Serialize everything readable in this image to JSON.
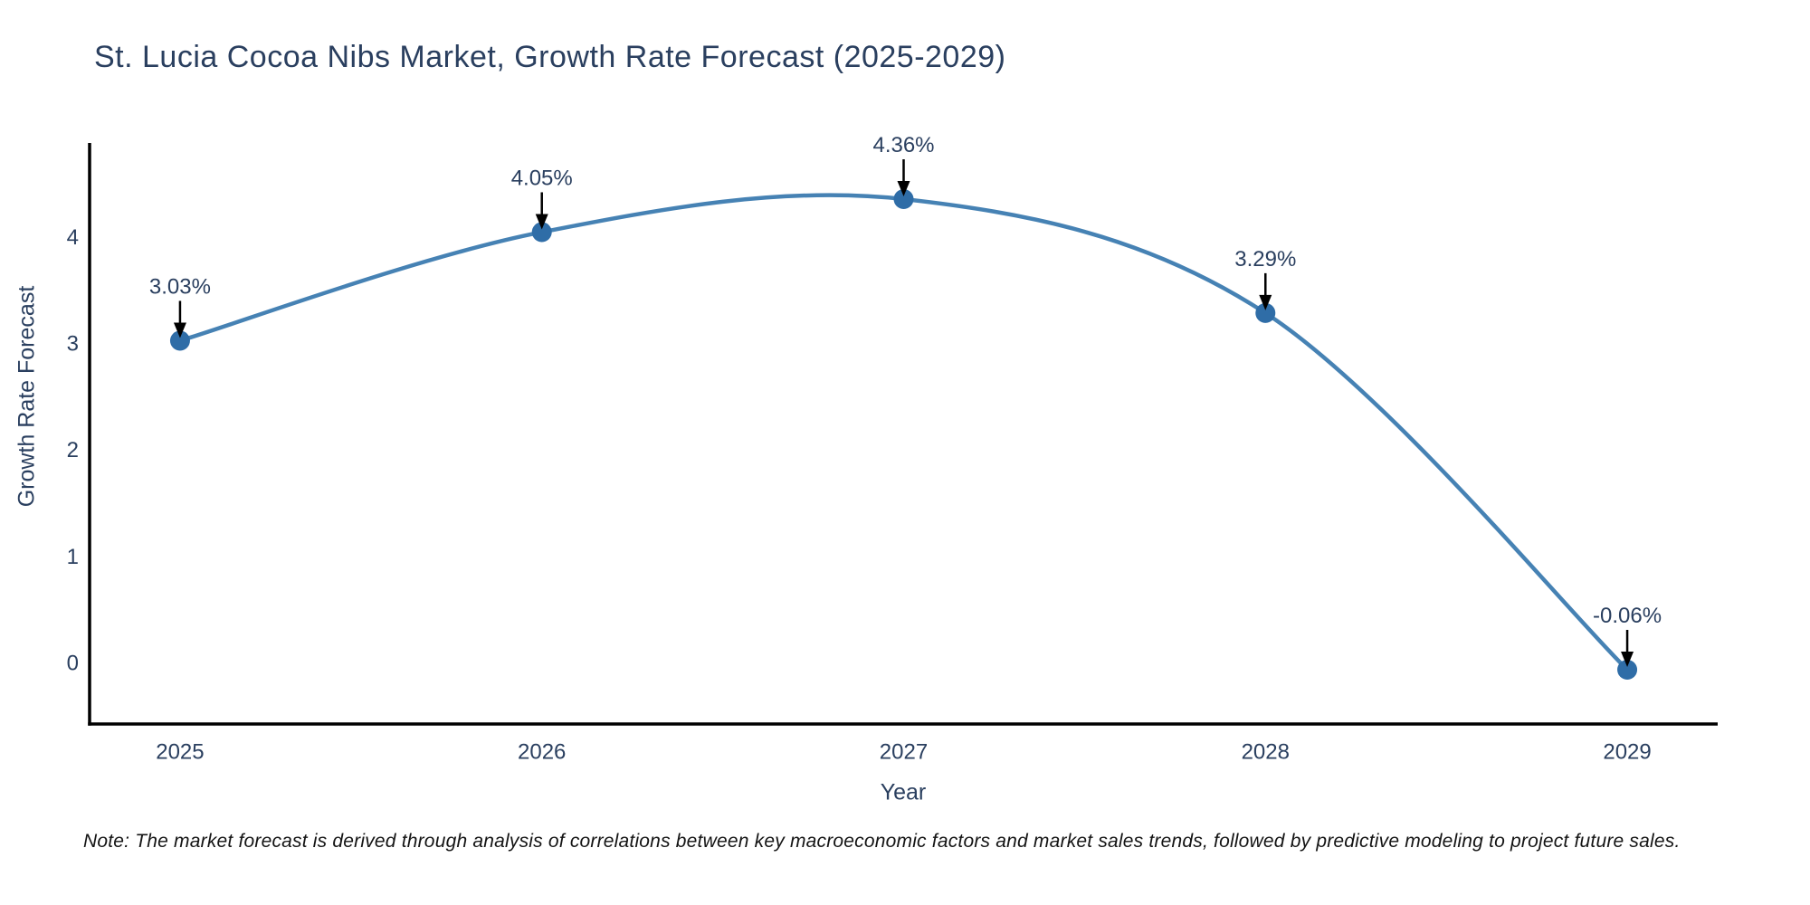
{
  "note": "Note: The market forecast is derived through analysis of correlations between key macroeconomic factors and market sales trends, followed by predictive modeling to project future sales.",
  "chart_data": {
    "type": "line",
    "line_shape": "spline",
    "title": "St. Lucia Cocoa Nibs Market, Growth Rate Forecast (2025-2029)",
    "xlabel": "Year",
    "ylabel": "Growth Rate Forecast",
    "x": [
      2025,
      2026,
      2027,
      2028,
      2029
    ],
    "values": [
      3.03,
      4.05,
      4.36,
      3.29,
      -0.06
    ],
    "point_labels": [
      "3.03%",
      "4.05%",
      "4.36%",
      "3.29%",
      "-0.06%"
    ],
    "xticks": [
      "2025",
      "2026",
      "2027",
      "2028",
      "2029"
    ],
    "yticks": [
      0,
      1,
      2,
      3,
      4
    ],
    "xlim": [
      2024.75,
      2029.25
    ],
    "ylim": [
      -0.57,
      4.87
    ],
    "grid": false,
    "legend": "none",
    "colors": {
      "line": "#4682b4",
      "marker": "#2f6da7",
      "axis": "#000000",
      "annotation_arrow": "#000000",
      "text": "#2a3f5f"
    }
  }
}
